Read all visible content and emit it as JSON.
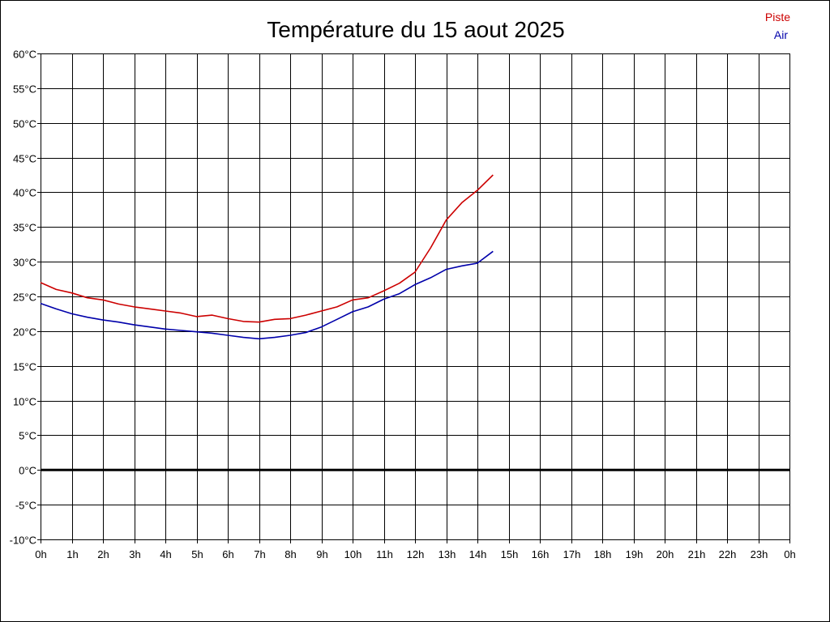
{
  "chart_data": {
    "type": "line",
    "title": "Température du 15 aout 2025",
    "xlabel": "",
    "ylabel": "",
    "x_ticks": [
      "0h",
      "1h",
      "2h",
      "3h",
      "4h",
      "5h",
      "6h",
      "7h",
      "8h",
      "9h",
      "10h",
      "11h",
      "12h",
      "13h",
      "14h",
      "15h",
      "16h",
      "17h",
      "18h",
      "19h",
      "20h",
      "21h",
      "22h",
      "23h",
      "0h"
    ],
    "y_ticks": [
      "60°C",
      "55°C",
      "50°C",
      "45°C",
      "40°C",
      "35°C",
      "30°C",
      "25°C",
      "20°C",
      "15°C",
      "10°C",
      "5°C",
      "0°C",
      "-5°C",
      "-10°C"
    ],
    "xlim": [
      0,
      24
    ],
    "ylim": [
      -10,
      60
    ],
    "grid": true,
    "legend_position": "top-right",
    "zero_line": true,
    "series": [
      {
        "name": "Piste",
        "color": "#cc0000",
        "x": [
          0,
          0.5,
          1,
          1.5,
          2,
          2.5,
          3,
          3.5,
          4,
          4.5,
          5,
          5.5,
          6,
          6.5,
          7,
          7.5,
          8,
          8.5,
          9,
          9.5,
          10,
          10.5,
          11,
          11.5,
          12,
          12.5,
          13,
          13.5,
          14,
          14.5
        ],
        "values": [
          27.0,
          26.0,
          25.5,
          24.8,
          24.5,
          23.9,
          23.5,
          23.2,
          22.9,
          22.6,
          22.1,
          22.3,
          21.8,
          21.4,
          21.3,
          21.7,
          21.8,
          22.3,
          22.9,
          23.5,
          24.5,
          24.8,
          25.8,
          26.9,
          28.5,
          32.0,
          36.0,
          38.5,
          40.3,
          42.5
        ]
      },
      {
        "name": "Air",
        "color": "#0000aa",
        "x": [
          0,
          0.5,
          1,
          1.5,
          2,
          2.5,
          3,
          3.5,
          4,
          4.5,
          5,
          5.5,
          6,
          6.5,
          7,
          7.5,
          8,
          8.5,
          9,
          9.5,
          10,
          10.5,
          11,
          11.5,
          12,
          12.5,
          13,
          13.5,
          14,
          14.5
        ],
        "values": [
          24.0,
          23.2,
          22.5,
          22.0,
          21.6,
          21.3,
          20.9,
          20.6,
          20.3,
          20.1,
          19.9,
          19.7,
          19.4,
          19.1,
          18.9,
          19.1,
          19.4,
          19.8,
          20.6,
          21.7,
          22.8,
          23.5,
          24.6,
          25.4,
          26.7,
          27.7,
          28.9,
          29.4,
          29.8,
          31.5
        ]
      }
    ]
  }
}
